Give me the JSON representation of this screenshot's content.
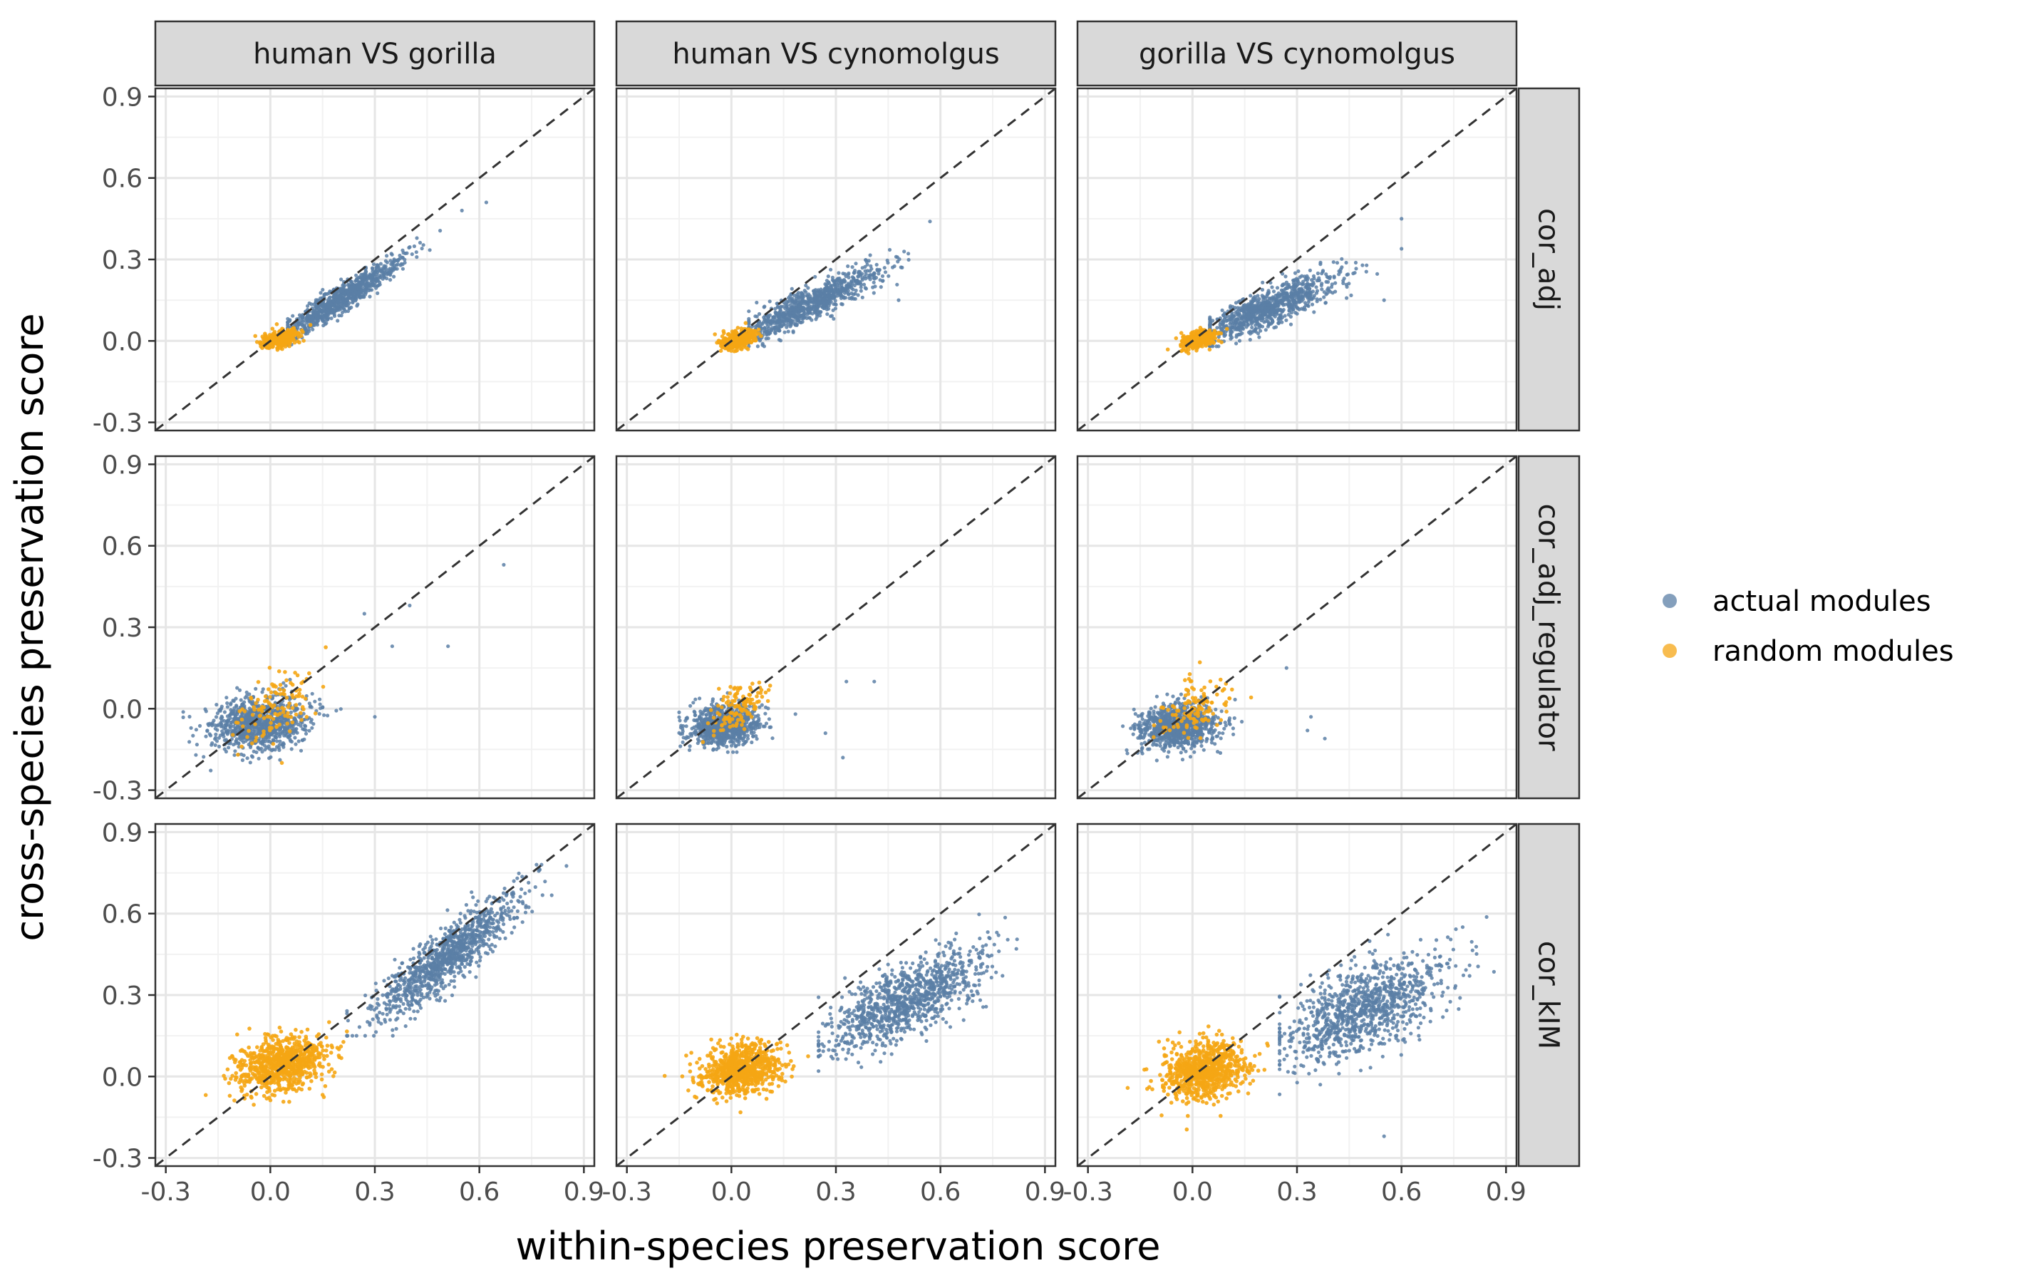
{
  "chart_data": {
    "type": "scatter",
    "xlabel": "within-species preservation score",
    "ylabel": "cross-species preservation score",
    "xlim": [
      -0.33,
      0.93
    ],
    "ylim": [
      -0.33,
      0.93
    ],
    "x_ticks": [
      "-0.3",
      "0.0",
      "0.3",
      "0.6",
      "0.9"
    ],
    "y_ticks": [
      "-0.3",
      "0.0",
      "0.3",
      "0.6",
      "0.9"
    ],
    "x_tick_values": [
      -0.3,
      0.0,
      0.3,
      0.6,
      0.9
    ],
    "y_tick_values": [
      -0.3,
      0.0,
      0.3,
      0.6,
      0.9
    ],
    "grid": true,
    "reference_line": "y = x (dashed)",
    "facet_columns": [
      "human VS gorilla",
      "human VS cynomolgus",
      "gorilla VS cynomolgus"
    ],
    "facet_rows": [
      "cor_adj",
      "cor_adj_regulator",
      "cor_kIM"
    ],
    "legend": {
      "position": "right",
      "entries": [
        {
          "label": "actual modules",
          "color": "#5b7fa6"
        },
        {
          "label": "random modules",
          "color": "#f5a614"
        }
      ]
    },
    "series": [
      {
        "name": "actual modules",
        "color": "#5b7fa6"
      },
      {
        "name": "random modules",
        "color": "#f5a614"
      }
    ],
    "panels": [
      {
        "column": "human VS gorilla",
        "row": "cor_adj",
        "actual": {
          "n": 900,
          "x_mean": 0.2,
          "x_sd": 0.09,
          "x_range": [
            0.05,
            0.62
          ],
          "slope": 0.82,
          "intercept": -0.01,
          "noise": 0.025,
          "y_range": [
            -0.02,
            0.52
          ]
        },
        "random": {
          "n": 350,
          "x_mean": 0.03,
          "x_sd": 0.025,
          "slope": 0.3,
          "intercept": 0.0,
          "noise": 0.015
        },
        "outliers": [
          {
            "x": 0.62,
            "y": 0.51
          },
          {
            "x": 0.55,
            "y": 0.48
          }
        ]
      },
      {
        "column": "human VS cynomolgus",
        "row": "cor_adj",
        "actual": {
          "n": 900,
          "x_mean": 0.22,
          "x_sd": 0.1,
          "x_range": [
            0.05,
            0.57
          ],
          "slope": 0.6,
          "intercept": 0.0,
          "noise": 0.03,
          "y_range": [
            -0.02,
            0.45
          ]
        },
        "random": {
          "n": 350,
          "x_mean": 0.02,
          "x_sd": 0.025,
          "slope": 0.3,
          "intercept": 0.0,
          "noise": 0.015
        },
        "outliers": [
          {
            "x": 0.57,
            "y": 0.44
          },
          {
            "x": 0.48,
            "y": 0.15
          }
        ]
      },
      {
        "column": "gorilla VS cynomolgus",
        "row": "cor_adj",
        "actual": {
          "n": 900,
          "x_mean": 0.22,
          "x_sd": 0.1,
          "x_range": [
            0.05,
            0.6
          ],
          "slope": 0.55,
          "intercept": 0.0,
          "noise": 0.035,
          "y_range": [
            -0.02,
            0.45
          ]
        },
        "random": {
          "n": 350,
          "x_mean": 0.02,
          "x_sd": 0.025,
          "slope": 0.3,
          "intercept": 0.0,
          "noise": 0.015
        },
        "outliers": [
          {
            "x": 0.6,
            "y": 0.45
          },
          {
            "x": 0.55,
            "y": 0.15
          }
        ]
      },
      {
        "column": "human VS gorilla",
        "row": "cor_adj_regulator",
        "actual": {
          "n": 900,
          "x_mean": -0.03,
          "x_sd": 0.07,
          "x_range": [
            -0.25,
            0.65
          ],
          "slope": 0.1,
          "intercept": -0.05,
          "noise": 0.05,
          "y_range": [
            -0.23,
            0.55
          ]
        },
        "random": {
          "n": 120,
          "x_mean": 0.02,
          "x_sd": 0.06,
          "slope": 0.5,
          "intercept": 0.0,
          "noise": 0.06
        },
        "outliers": [
          {
            "x": 0.67,
            "y": 0.53
          },
          {
            "x": 0.4,
            "y": 0.38
          },
          {
            "x": 0.27,
            "y": 0.35
          },
          {
            "x": 0.51,
            "y": 0.23
          },
          {
            "x": 0.35,
            "y": 0.23
          },
          {
            "x": 0.3,
            "y": -0.03
          }
        ]
      },
      {
        "column": "human VS cynomolgus",
        "row": "cor_adj_regulator",
        "actual": {
          "n": 900,
          "x_mean": -0.02,
          "x_sd": 0.05,
          "x_range": [
            -0.15,
            0.45
          ],
          "slope": 0.1,
          "intercept": -0.06,
          "noise": 0.035,
          "y_range": [
            -0.16,
            0.14
          ]
        },
        "random": {
          "n": 120,
          "x_mean": 0.02,
          "x_sd": 0.04,
          "slope": 0.4,
          "intercept": 0.0,
          "noise": 0.04
        },
        "outliers": [
          {
            "x": 0.41,
            "y": 0.1
          },
          {
            "x": 0.33,
            "y": 0.1
          },
          {
            "x": 0.32,
            "y": -0.18
          },
          {
            "x": 0.27,
            "y": -0.09
          }
        ]
      },
      {
        "column": "gorilla VS cynomolgus",
        "row": "cor_adj_regulator",
        "actual": {
          "n": 900,
          "x_mean": -0.04,
          "x_sd": 0.055,
          "x_range": [
            -0.2,
            0.4
          ],
          "slope": 0.1,
          "intercept": -0.06,
          "noise": 0.04,
          "y_range": [
            -0.2,
            0.16
          ]
        },
        "random": {
          "n": 120,
          "x_mean": 0.0,
          "x_sd": 0.05,
          "slope": 0.4,
          "intercept": 0.0,
          "noise": 0.05
        },
        "outliers": [
          {
            "x": 0.34,
            "y": -0.03
          },
          {
            "x": 0.38,
            "y": -0.11
          },
          {
            "x": 0.27,
            "y": 0.15
          },
          {
            "x": 0.33,
            "y": -0.08
          }
        ]
      },
      {
        "column": "human VS gorilla",
        "row": "cor_kIM",
        "actual": {
          "n": 1000,
          "x_mean": 0.5,
          "x_sd": 0.11,
          "x_range": [
            0.22,
            0.85
          ],
          "slope": 0.95,
          "intercept": -0.04,
          "noise": 0.055,
          "y_range": [
            0.15,
            0.78
          ]
        },
        "random": {
          "n": 800,
          "x_mean": 0.03,
          "x_sd": 0.065,
          "slope": 0.2,
          "intercept": 0.04,
          "noise": 0.05
        },
        "outliers": []
      },
      {
        "column": "human VS cynomolgus",
        "row": "cor_kIM",
        "actual": {
          "n": 1000,
          "x_mean": 0.5,
          "x_sd": 0.11,
          "x_range": [
            0.25,
            0.82
          ],
          "slope": 0.6,
          "intercept": -0.02,
          "noise": 0.065,
          "y_range": [
            0.02,
            0.68
          ]
        },
        "random": {
          "n": 800,
          "x_mean": 0.03,
          "x_sd": 0.055,
          "slope": 0.2,
          "intercept": 0.02,
          "noise": 0.045
        },
        "outliers": []
      },
      {
        "column": "gorilla VS cynomolgus",
        "row": "cor_kIM",
        "actual": {
          "n": 1000,
          "x_mean": 0.5,
          "x_sd": 0.12,
          "x_range": [
            0.25,
            0.88
          ],
          "slope": 0.5,
          "intercept": 0.0,
          "noise": 0.08,
          "y_range": [
            -0.22,
            0.68
          ]
        },
        "random": {
          "n": 800,
          "x_mean": 0.03,
          "x_sd": 0.06,
          "slope": 0.2,
          "intercept": 0.02,
          "noise": 0.05
        },
        "outliers": [
          {
            "x": 0.55,
            "y": -0.22
          }
        ]
      }
    ]
  }
}
